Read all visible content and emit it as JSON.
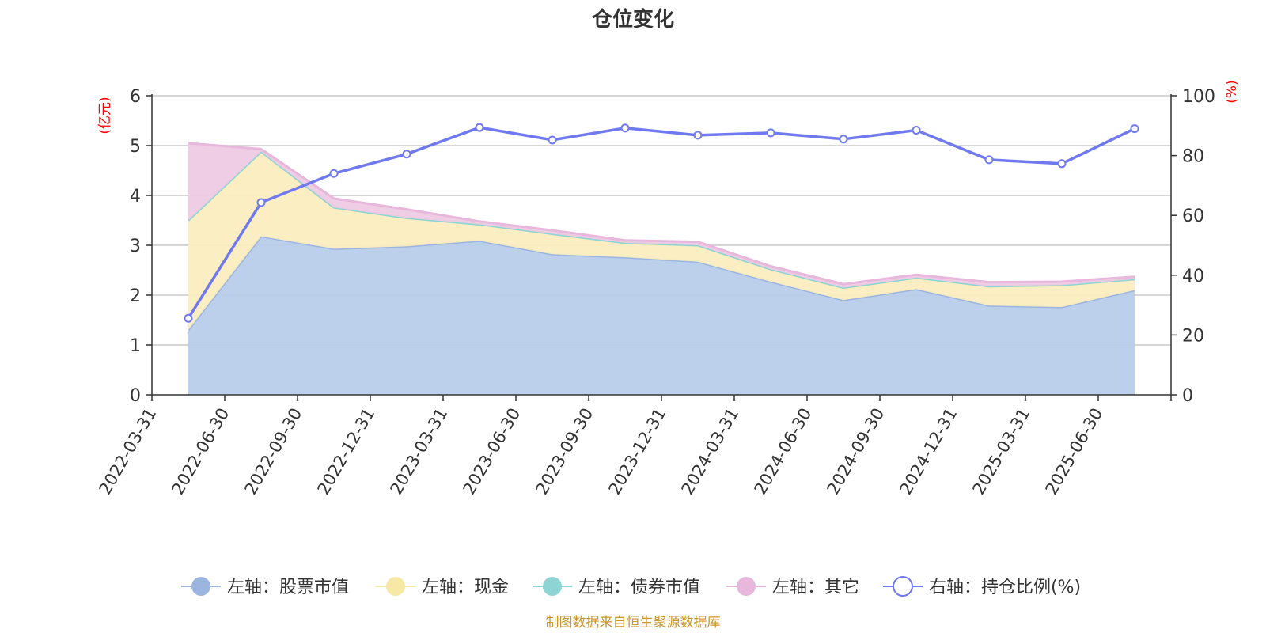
{
  "chart_data": {
    "type": "area",
    "title": "仓位变化",
    "left_axis": {
      "unit": "(亿元)",
      "ylim": [
        0,
        6
      ],
      "ticks": [
        "0",
        "1",
        "2",
        "3",
        "4",
        "5",
        "6"
      ]
    },
    "right_axis": {
      "unit": "(%)",
      "ylim": [
        0,
        100
      ],
      "ticks": [
        "0",
        "20",
        "40",
        "60",
        "80",
        "100"
      ]
    },
    "categories": [
      "2022-03-31",
      "2022-06-30",
      "2022-09-30",
      "2022-12-31",
      "2023-03-31",
      "2023-06-30",
      "2023-09-30",
      "2023-12-31",
      "2024-03-31",
      "2024-06-30",
      "2024-09-30",
      "2024-12-31",
      "2025-03-31",
      "2025-06-30"
    ],
    "series": [
      {
        "name": "左轴：股票市值",
        "axis": "left",
        "kind": "stacked-area",
        "color": "#9bb5de",
        "fill": "#b8cdea",
        "values": [
          1.3,
          3.18,
          2.93,
          2.98,
          3.09,
          2.82,
          2.76,
          2.67,
          2.27,
          1.9,
          2.12,
          1.79,
          1.76,
          2.1
        ]
      },
      {
        "name": "左轴：现金",
        "axis": "left",
        "kind": "stacked-area",
        "color": "#f8e8a6",
        "fill": "#faedbf",
        "values": [
          2.2,
          1.7,
          0.83,
          0.57,
          0.33,
          0.41,
          0.29,
          0.33,
          0.25,
          0.25,
          0.23,
          0.39,
          0.44,
          0.22
        ]
      },
      {
        "name": "左轴：债券市值",
        "axis": "left",
        "kind": "stacked-area",
        "color": "#8ed4d4",
        "fill": "#b9e5e5",
        "values": [
          0,
          0,
          0,
          0,
          0,
          0,
          0,
          0,
          0,
          0,
          0,
          0,
          0,
          0
        ]
      },
      {
        "name": "左轴：其它",
        "axis": "left",
        "kind": "stacked-area",
        "color": "#e8b7dc",
        "fill": "#eecae4",
        "values": [
          1.55,
          0.05,
          0.18,
          0.17,
          0.06,
          0.07,
          0.05,
          0.07,
          0.06,
          0.07,
          0.06,
          0.08,
          0.07,
          0.05
        ]
      },
      {
        "name": "右轴：持仓比例(%)",
        "axis": "right",
        "kind": "line",
        "color": "#7079ef",
        "values": [
          25.6,
          64.3,
          74.0,
          80.5,
          89.4,
          85.2,
          89.2,
          86.8,
          87.6,
          85.5,
          88.5,
          78.6,
          77.3,
          89.0
        ]
      }
    ]
  },
  "footer": {
    "source": "制图数据来自恒生聚源数据库"
  }
}
